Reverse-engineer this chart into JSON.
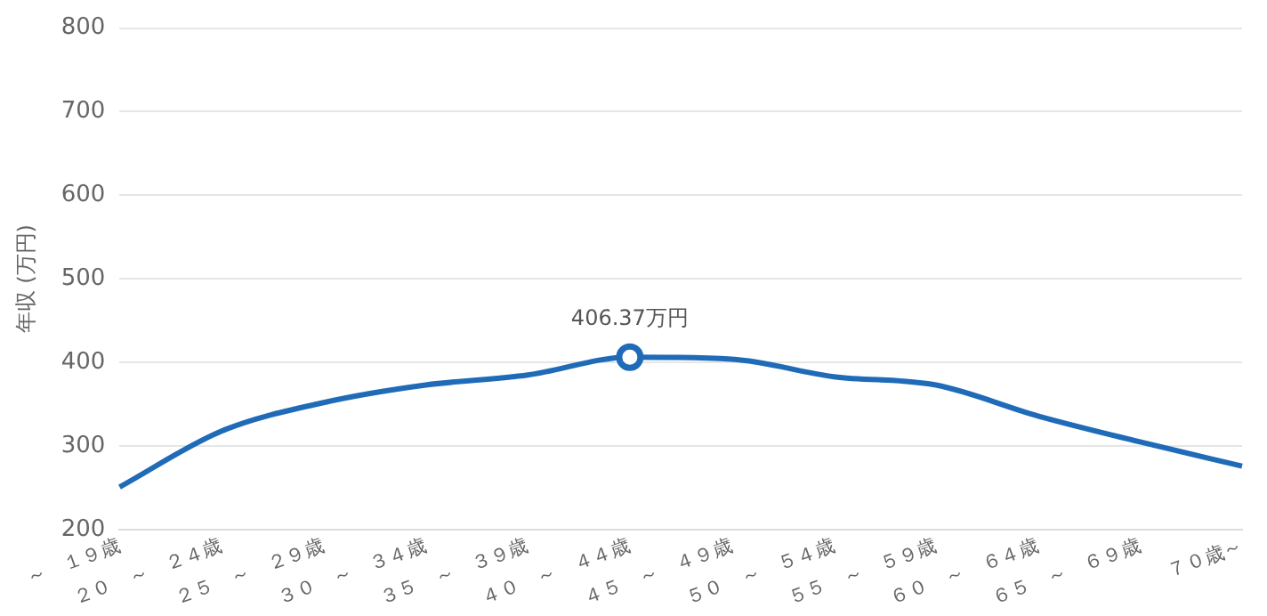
{
  "chart_data": {
    "type": "line",
    "ylabel": "年収 (万円)",
    "categories": [
      "～　１９歳",
      "２０　～　２４歳",
      "２５　～　２９歳",
      "３０　～　３４歳",
      "３５　～　３９歳",
      "４０　～　４４歳",
      "４５　～　４９歳",
      "５０　～　５４歳",
      "５５　～　５９歳",
      "６０　～　６４歳",
      "６５　～　６９歳",
      "７０歳～"
    ],
    "series": [
      {
        "color": "#1f6bb8",
        "values": [
          251,
          318,
          352,
          373,
          385,
          406.37,
          404,
          383,
          373,
          336,
          305,
          276
        ]
      }
    ],
    "annotations": [
      {
        "text": "406.37万円",
        "x": "４０　～　４４歳",
        "y": 406.37
      }
    ],
    "ylim": [
      200,
      800
    ],
    "yticks": [
      200,
      300,
      400,
      500,
      600,
      700,
      800
    ],
    "grid": "y",
    "legend": false,
    "marker": "none"
  }
}
